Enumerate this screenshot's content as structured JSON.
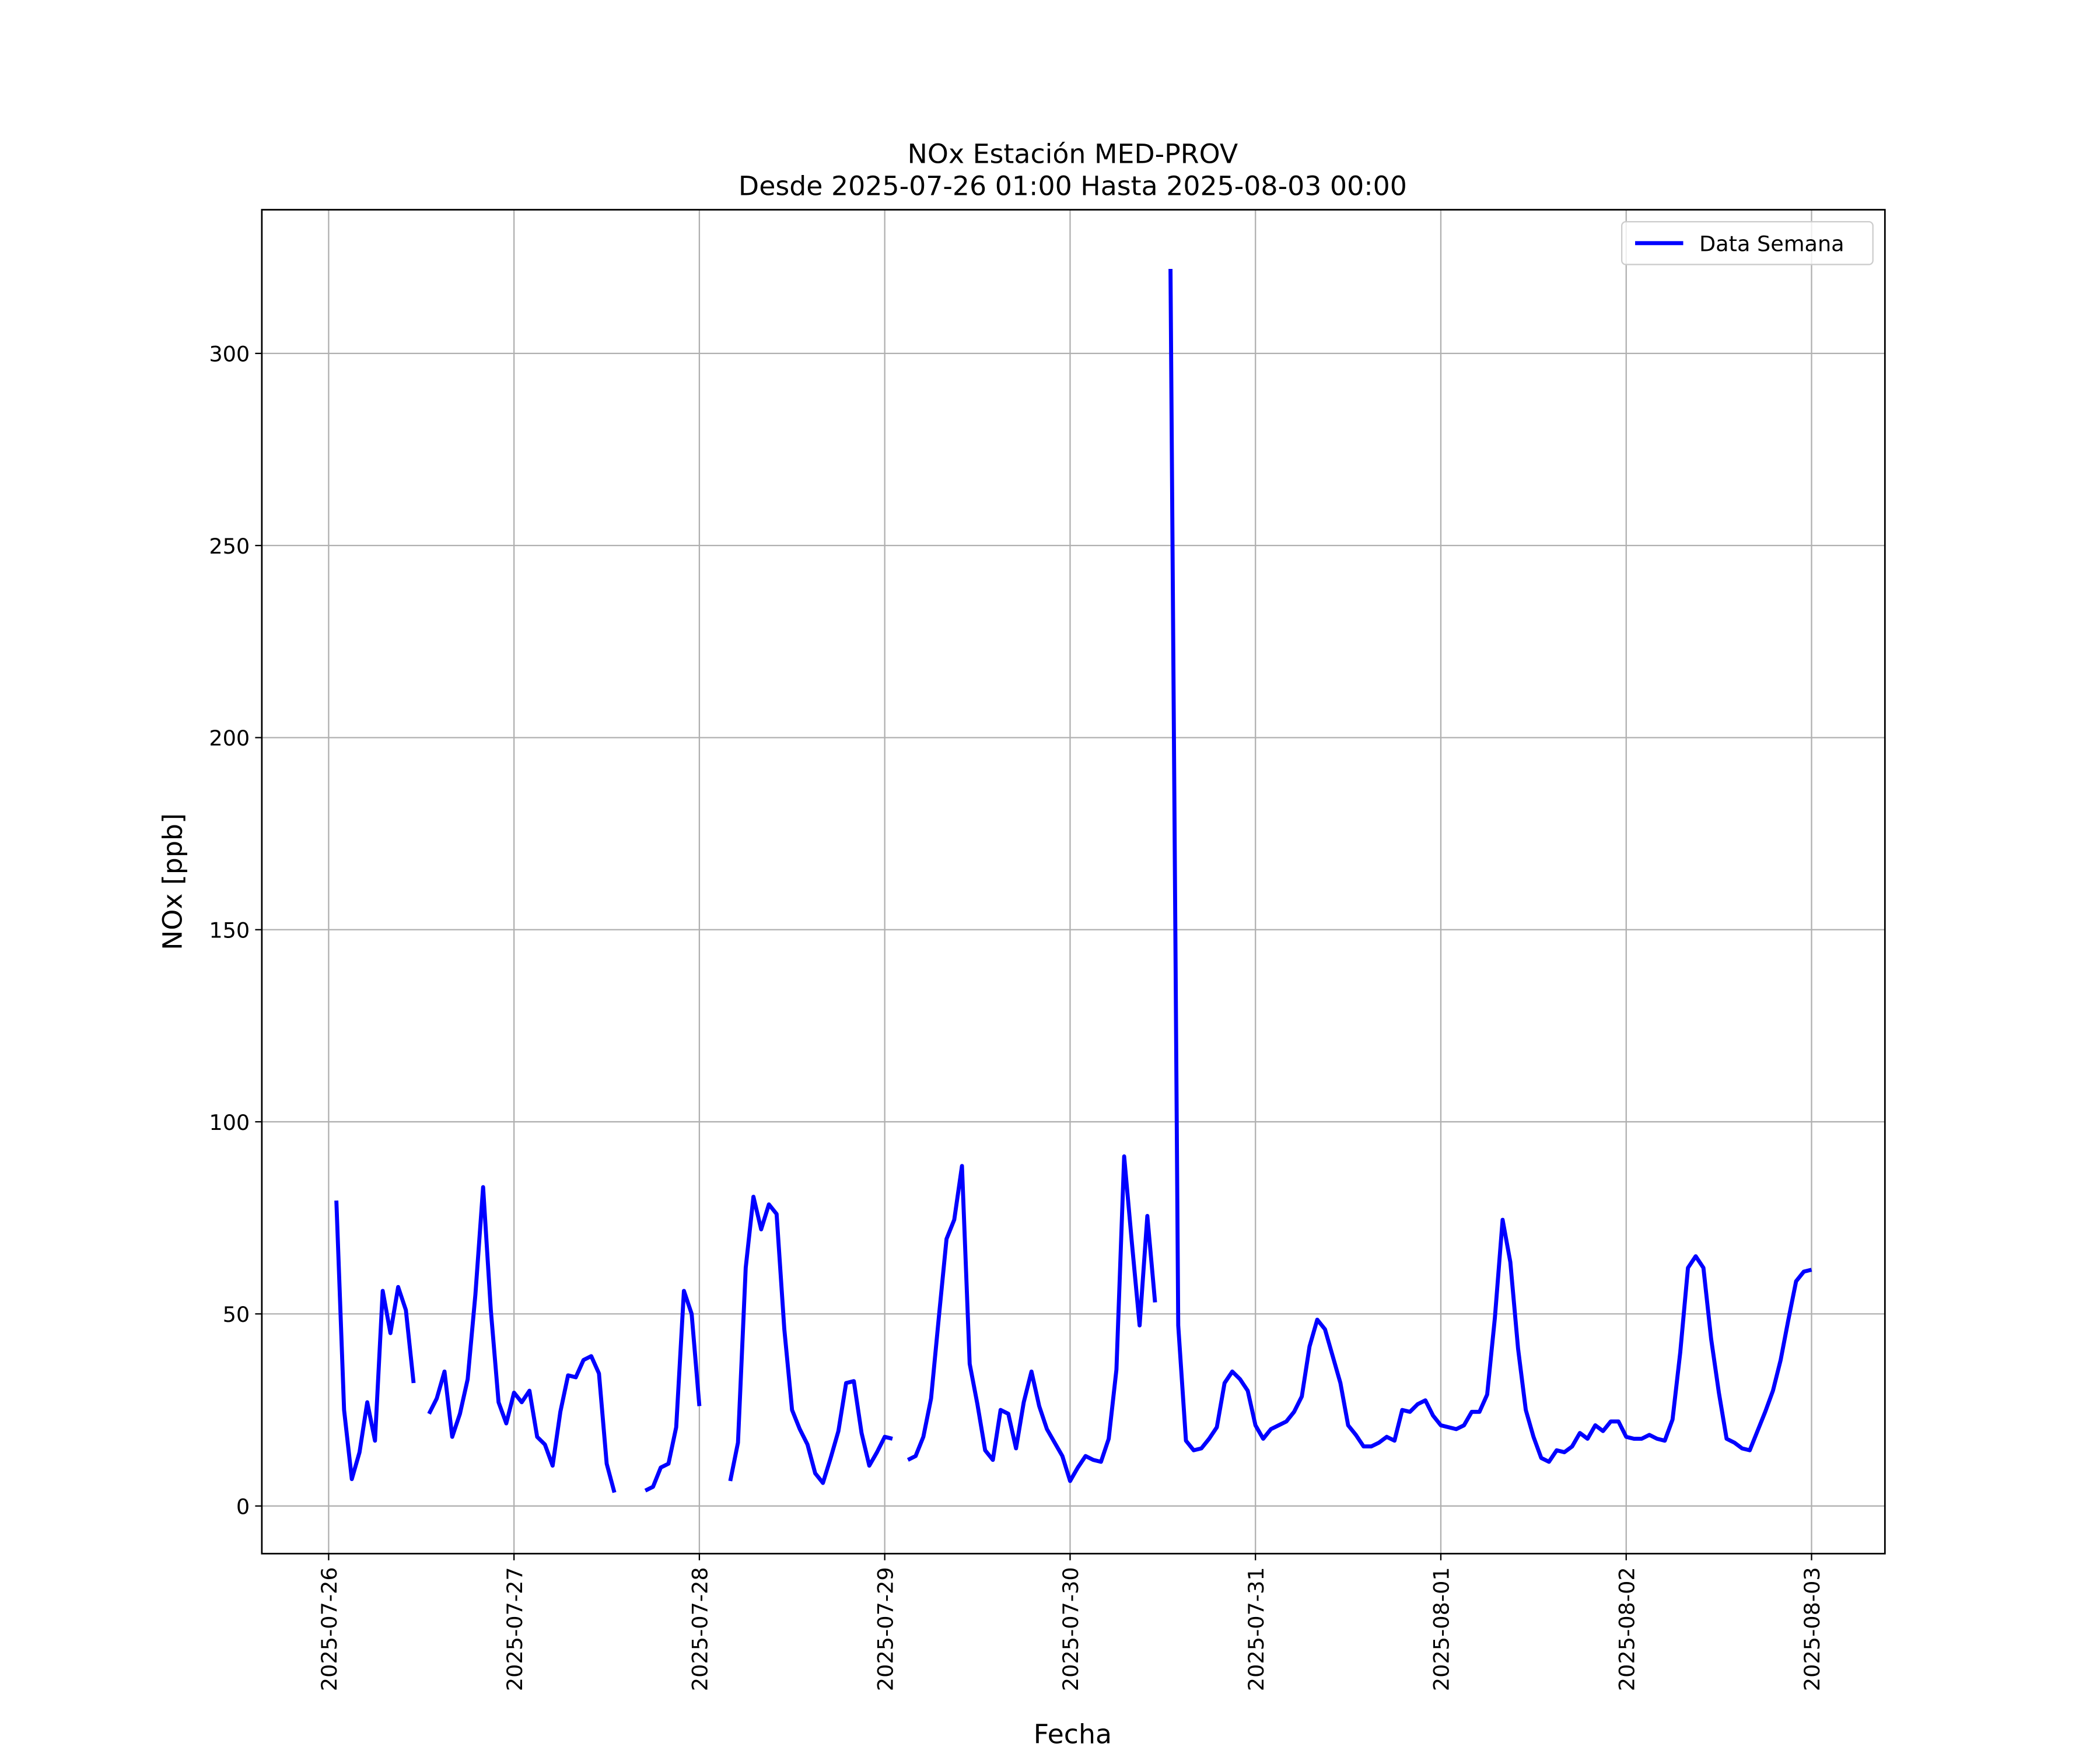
{
  "chart_data": {
    "type": "line",
    "title": "NOx Estación MED-PROV",
    "subtitle": "Desde 2025-07-26 01:00 Hasta 2025-08-03 00:00",
    "x_label": "Fecha",
    "y_label": "NOx [ppb]",
    "x": [
      "2025-07-26 01:00",
      "2025-07-26 02:00",
      "2025-07-26 03:00",
      "2025-07-26 04:00",
      "2025-07-26 05:00",
      "2025-07-26 06:00",
      "2025-07-26 07:00",
      "2025-07-26 08:00",
      "2025-07-26 09:00",
      "2025-07-26 10:00",
      "2025-07-26 11:00",
      "2025-07-26 12:00",
      "2025-07-26 13:00",
      "2025-07-26 14:00",
      "2025-07-26 15:00",
      "2025-07-26 16:00",
      "2025-07-26 17:00",
      "2025-07-26 18:00",
      "2025-07-26 19:00",
      "2025-07-26 20:00",
      "2025-07-26 21:00",
      "2025-07-26 22:00",
      "2025-07-26 23:00",
      "2025-07-27 00:00",
      "2025-07-27 01:00",
      "2025-07-27 02:00",
      "2025-07-27 03:00",
      "2025-07-27 04:00",
      "2025-07-27 05:00",
      "2025-07-27 06:00",
      "2025-07-27 07:00",
      "2025-07-27 08:00",
      "2025-07-27 09:00",
      "2025-07-27 10:00",
      "2025-07-27 11:00",
      "2025-07-27 12:00",
      "2025-07-27 13:00",
      "2025-07-27 14:00",
      "2025-07-27 15:00",
      "2025-07-27 16:00",
      "2025-07-27 17:00",
      "2025-07-27 18:00",
      "2025-07-27 19:00",
      "2025-07-27 20:00",
      "2025-07-27 21:00",
      "2025-07-27 22:00",
      "2025-07-27 23:00",
      "2025-07-28 00:00",
      "2025-07-28 01:00",
      "2025-07-28 02:00",
      "2025-07-28 03:00",
      "2025-07-28 04:00",
      "2025-07-28 05:00",
      "2025-07-28 06:00",
      "2025-07-28 07:00",
      "2025-07-28 08:00",
      "2025-07-28 09:00",
      "2025-07-28 10:00",
      "2025-07-28 11:00",
      "2025-07-28 12:00",
      "2025-07-28 13:00",
      "2025-07-28 14:00",
      "2025-07-28 15:00",
      "2025-07-28 16:00",
      "2025-07-28 17:00",
      "2025-07-28 18:00",
      "2025-07-28 19:00",
      "2025-07-28 20:00",
      "2025-07-28 21:00",
      "2025-07-28 22:00",
      "2025-07-28 23:00",
      "2025-07-29 00:00",
      "2025-07-29 01:00",
      "2025-07-29 02:00",
      "2025-07-29 03:00",
      "2025-07-29 04:00",
      "2025-07-29 05:00",
      "2025-07-29 06:00",
      "2025-07-29 07:00",
      "2025-07-29 08:00",
      "2025-07-29 09:00",
      "2025-07-29 10:00",
      "2025-07-29 11:00",
      "2025-07-29 12:00",
      "2025-07-29 13:00",
      "2025-07-29 14:00",
      "2025-07-29 15:00",
      "2025-07-29 16:00",
      "2025-07-29 17:00",
      "2025-07-29 18:00",
      "2025-07-29 19:00",
      "2025-07-29 20:00",
      "2025-07-29 21:00",
      "2025-07-29 22:00",
      "2025-07-29 23:00",
      "2025-07-30 00:00",
      "2025-07-30 01:00",
      "2025-07-30 02:00",
      "2025-07-30 03:00",
      "2025-07-30 04:00",
      "2025-07-30 05:00",
      "2025-07-30 06:00",
      "2025-07-30 07:00",
      "2025-07-30 08:00",
      "2025-07-30 09:00",
      "2025-07-30 10:00",
      "2025-07-30 11:00",
      "2025-07-30 12:00",
      "2025-07-30 13:00",
      "2025-07-30 14:00",
      "2025-07-30 15:00",
      "2025-07-30 16:00",
      "2025-07-30 17:00",
      "2025-07-30 18:00",
      "2025-07-30 19:00",
      "2025-07-30 20:00",
      "2025-07-30 21:00",
      "2025-07-30 22:00",
      "2025-07-30 23:00",
      "2025-07-31 00:00",
      "2025-07-31 01:00",
      "2025-07-31 02:00",
      "2025-07-31 03:00",
      "2025-07-31 04:00",
      "2025-07-31 05:00",
      "2025-07-31 06:00",
      "2025-07-31 07:00",
      "2025-07-31 08:00",
      "2025-07-31 09:00",
      "2025-07-31 10:00",
      "2025-07-31 11:00",
      "2025-07-31 12:00",
      "2025-07-31 13:00",
      "2025-07-31 14:00",
      "2025-07-31 15:00",
      "2025-07-31 16:00",
      "2025-07-31 17:00",
      "2025-07-31 18:00",
      "2025-07-31 19:00",
      "2025-07-31 20:00",
      "2025-07-31 21:00",
      "2025-07-31 22:00",
      "2025-07-31 23:00",
      "2025-08-01 00:00",
      "2025-08-01 01:00",
      "2025-08-01 02:00",
      "2025-08-01 03:00",
      "2025-08-01 04:00",
      "2025-08-01 05:00",
      "2025-08-01 06:00",
      "2025-08-01 07:00",
      "2025-08-01 08:00",
      "2025-08-01 09:00",
      "2025-08-01 10:00",
      "2025-08-01 11:00",
      "2025-08-01 12:00",
      "2025-08-01 13:00",
      "2025-08-01 14:00",
      "2025-08-01 15:00",
      "2025-08-01 16:00",
      "2025-08-01 17:00",
      "2025-08-01 18:00",
      "2025-08-01 19:00",
      "2025-08-01 20:00",
      "2025-08-01 21:00",
      "2025-08-01 22:00",
      "2025-08-01 23:00",
      "2025-08-02 00:00",
      "2025-08-02 01:00",
      "2025-08-02 02:00",
      "2025-08-02 03:00",
      "2025-08-02 04:00",
      "2025-08-02 05:00",
      "2025-08-02 06:00",
      "2025-08-02 07:00",
      "2025-08-02 08:00",
      "2025-08-02 09:00",
      "2025-08-02 10:00",
      "2025-08-02 11:00",
      "2025-08-02 12:00",
      "2025-08-02 13:00",
      "2025-08-02 14:00",
      "2025-08-02 15:00",
      "2025-08-02 16:00",
      "2025-08-02 17:00",
      "2025-08-02 18:00",
      "2025-08-02 19:00",
      "2025-08-02 20:00",
      "2025-08-02 21:00",
      "2025-08-02 22:00",
      "2025-08-02 23:00",
      "2025-08-03 00:00"
    ],
    "series": [
      {
        "name": "Data Semana",
        "color": "#0000ff",
        "values": [
          79.5,
          25,
          7,
          14,
          27,
          17,
          56,
          45,
          57,
          51,
          32,
          null,
          24,
          28,
          35,
          18,
          24,
          33,
          55,
          83,
          51,
          27,
          21.5,
          29.5,
          27,
          30,
          18,
          16,
          10.5,
          24.5,
          34,
          33.5,
          38,
          39,
          34.5,
          11,
          3.5,
          null,
          null,
          null,
          4,
          5,
          10,
          11,
          20.5,
          56,
          50,
          26,
          null,
          null,
          null,
          6.5,
          16.5,
          62,
          80.5,
          72,
          78.5,
          76,
          46,
          25,
          20,
          16,
          8.5,
          6,
          12.5,
          19.5,
          32,
          32.5,
          19,
          10.5,
          14,
          18,
          17.5,
          null,
          12,
          13,
          18,
          28,
          49,
          69.5,
          74.5,
          88.5,
          37,
          26.5,
          14.5,
          12,
          25,
          24,
          15,
          27,
          35,
          26,
          20,
          16.5,
          13,
          6.5,
          10,
          13,
          12,
          11.5,
          17.5,
          35.5,
          91,
          68.5,
          47,
          75.5,
          53,
          null,
          322,
          47,
          17,
          14.5,
          15,
          17.5,
          20.5,
          32,
          35,
          33,
          30,
          21,
          17.5,
          20,
          21,
          22,
          24.5,
          28.5,
          41.5,
          48.5,
          46,
          39,
          32,
          21,
          18.5,
          15.5,
          15.5,
          16.5,
          18,
          17,
          25,
          24.5,
          26.5,
          27.5,
          23.5,
          21,
          20.5,
          20,
          21,
          24.5,
          24.5,
          29,
          49,
          74.5,
          63.5,
          41,
          25,
          18,
          12.5,
          11.5,
          14.5,
          14,
          15.5,
          19,
          17.5,
          21,
          19.5,
          22,
          22,
          18,
          17.5,
          17.5,
          18.5,
          17.5,
          17,
          22.5,
          40,
          62,
          65,
          62,
          43.5,
          29.5,
          17.5,
          16.5,
          15,
          14.5,
          19.5,
          24.5,
          30,
          38,
          48.5,
          58.5,
          61,
          61.5
        ]
      }
    ],
    "xlim": [
      "2025-07-25 15:21",
      "2025-08-03 09:30"
    ],
    "xticks": [
      "2025-07-26",
      "2025-07-27",
      "2025-07-28",
      "2025-07-29",
      "2025-07-30",
      "2025-07-31",
      "2025-08-01",
      "2025-08-02",
      "2025-08-03"
    ],
    "ylim": [
      -12.4,
      337.4
    ],
    "yticks": [
      0,
      50,
      100,
      150,
      200,
      250,
      300
    ],
    "grid": true,
    "legend": "upper right"
  }
}
